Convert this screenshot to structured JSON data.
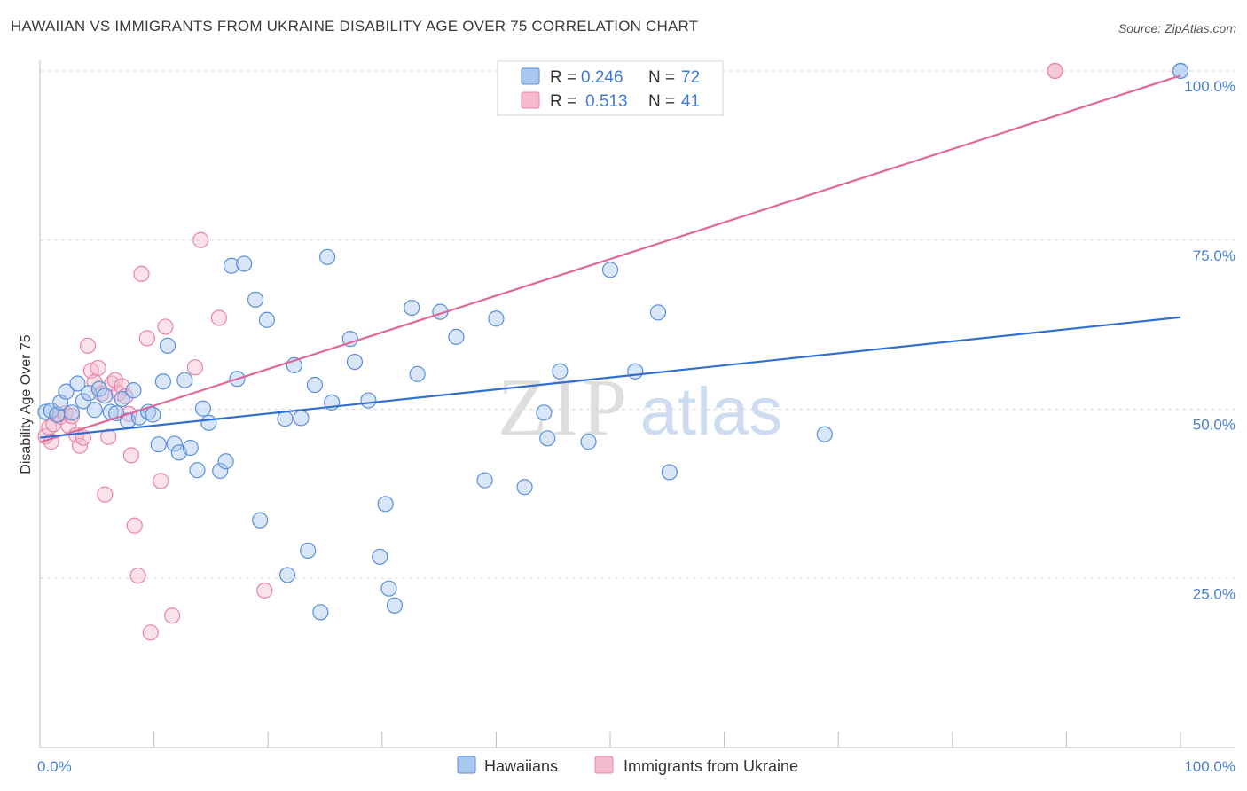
{
  "title": "HAWAIIAN VS IMMIGRANTS FROM UKRAINE DISABILITY AGE OVER 75 CORRELATION CHART",
  "source": "Source: ZipAtlas.com",
  "watermark": {
    "zip": "ZIP",
    "atlas": "atlas"
  },
  "colors": {
    "hawaiians_fill": "#a9c8f0",
    "hawaiians_stroke": "#5b8fd8",
    "hawaiians_line": "#2f6fcf",
    "ukraine_fill": "#f5bcd0",
    "ukraine_stroke": "#e884a8",
    "ukraine_line": "#e0679a",
    "tick": "#4a7fd0",
    "grid": "#d9d9d9"
  },
  "legend": {
    "rows": [
      {
        "r_label": "R =",
        "r_value": "0.246",
        "n_label": "N =",
        "n_value": "72"
      },
      {
        "r_label": "R =",
        "r_value": "0.513",
        "n_label": "N =",
        "n_value": "41"
      }
    ]
  },
  "chart_data": {
    "type": "scatter",
    "xlabel": "",
    "ylabel": "Disability Age Over 75",
    "xlim": [
      0,
      100
    ],
    "ylim": [
      0,
      102
    ],
    "x_tick_labels": [
      "0.0%",
      "100.0%"
    ],
    "y_ticks": [
      25,
      50,
      75,
      100
    ],
    "y_tick_labels": [
      "25.0%",
      "50.0%",
      "75.0%",
      "100.0%"
    ],
    "grid": true,
    "legend_position": "top-center",
    "series": [
      {
        "name": "Hawaiians",
        "trend": {
          "x0": 0,
          "y0": 45.8,
          "x1": 100,
          "y1": 63.6
        },
        "points": [
          [
            0.5,
            49.6
          ],
          [
            1,
            49.8
          ],
          [
            1.5,
            49.2
          ],
          [
            1.8,
            51
          ],
          [
            2.3,
            52.6
          ],
          [
            2.8,
            49.5
          ],
          [
            3.3,
            53.8
          ],
          [
            3.8,
            51.2
          ],
          [
            4.3,
            52.4
          ],
          [
            4.8,
            49.9
          ],
          [
            5.2,
            53
          ],
          [
            5.7,
            52
          ],
          [
            6.2,
            49.6
          ],
          [
            6.7,
            49.4
          ],
          [
            7.2,
            51.5
          ],
          [
            7.7,
            48.3
          ],
          [
            8.2,
            52.8
          ],
          [
            8.7,
            48.8
          ],
          [
            9.5,
            49.6
          ],
          [
            9.9,
            49.2
          ],
          [
            10.4,
            44.8
          ],
          [
            10.8,
            54.1
          ],
          [
            11.2,
            59.4
          ],
          [
            11.8,
            44.9
          ],
          [
            12.2,
            43.6
          ],
          [
            12.7,
            54.3
          ],
          [
            13.2,
            44.3
          ],
          [
            13.8,
            41
          ],
          [
            14.3,
            50.1
          ],
          [
            14.8,
            48
          ],
          [
            15.8,
            40.9
          ],
          [
            16.3,
            42.3
          ],
          [
            16.8,
            71.2
          ],
          [
            17.3,
            54.5
          ],
          [
            17.9,
            71.5
          ],
          [
            18.9,
            66.2
          ],
          [
            19.3,
            33.6
          ],
          [
            19.9,
            63.2
          ],
          [
            21.5,
            48.6
          ],
          [
            21.7,
            25.5
          ],
          [
            22.3,
            56.5
          ],
          [
            22.9,
            48.7
          ],
          [
            23.5,
            29.1
          ],
          [
            24.1,
            53.6
          ],
          [
            24.6,
            20
          ],
          [
            25.2,
            72.5
          ],
          [
            25.6,
            51
          ],
          [
            27.2,
            60.4
          ],
          [
            27.6,
            57
          ],
          [
            28.8,
            51.3
          ],
          [
            29.8,
            28.2
          ],
          [
            30.3,
            36
          ],
          [
            30.6,
            23.5
          ],
          [
            31.1,
            21
          ],
          [
            32.6,
            65
          ],
          [
            33.1,
            55.2
          ],
          [
            35.1,
            64.4
          ],
          [
            36.5,
            60.7
          ],
          [
            39,
            39.5
          ],
          [
            40,
            63.4
          ],
          [
            42.5,
            38.5
          ],
          [
            44.2,
            49.5
          ],
          [
            44.5,
            45.7
          ],
          [
            45.6,
            55.6
          ],
          [
            48.1,
            45.2
          ],
          [
            50,
            70.6
          ],
          [
            52.2,
            55.6
          ],
          [
            54.2,
            64.3
          ],
          [
            55.2,
            40.7
          ],
          [
            68.8,
            46.3
          ],
          [
            100,
            100
          ],
          [
            100,
            100
          ]
        ]
      },
      {
        "name": "Immigrants from Ukraine",
        "trend": {
          "x0": 0,
          "y0": 45.1,
          "x1": 100,
          "y1": 99.3
        },
        "points": [
          [
            0.5,
            46
          ],
          [
            0.8,
            47.3
          ],
          [
            1,
            45.2
          ],
          [
            1.2,
            47.8
          ],
          [
            1.5,
            49.2
          ],
          [
            1.8,
            48.9
          ],
          [
            2.2,
            49.4
          ],
          [
            2.5,
            47.6
          ],
          [
            2.8,
            49
          ],
          [
            3.2,
            46.2
          ],
          [
            3.5,
            44.6
          ],
          [
            3.8,
            45.8
          ],
          [
            4.2,
            59.4
          ],
          [
            4.5,
            55.7
          ],
          [
            4.8,
            54
          ],
          [
            5.1,
            56.1
          ],
          [
            5.4,
            52.3
          ],
          [
            5.7,
            37.4
          ],
          [
            6,
            45.9
          ],
          [
            6.3,
            53.8
          ],
          [
            6.6,
            54.3
          ],
          [
            6.9,
            52.4
          ],
          [
            7.2,
            53.4
          ],
          [
            7.5,
            51.9
          ],
          [
            7.8,
            49.3
          ],
          [
            8,
            43.2
          ],
          [
            8.3,
            32.8
          ],
          [
            8.6,
            25.4
          ],
          [
            8.9,
            70
          ],
          [
            9.4,
            60.5
          ],
          [
            9.7,
            17
          ],
          [
            10.6,
            39.4
          ],
          [
            11,
            62.2
          ],
          [
            11.6,
            19.5
          ],
          [
            13.6,
            56.2
          ],
          [
            14.1,
            75
          ],
          [
            15.7,
            63.5
          ],
          [
            19.7,
            23.2
          ],
          [
            89,
            100
          ],
          [
            89,
            100
          ],
          [
            89,
            100
          ]
        ]
      }
    ]
  }
}
